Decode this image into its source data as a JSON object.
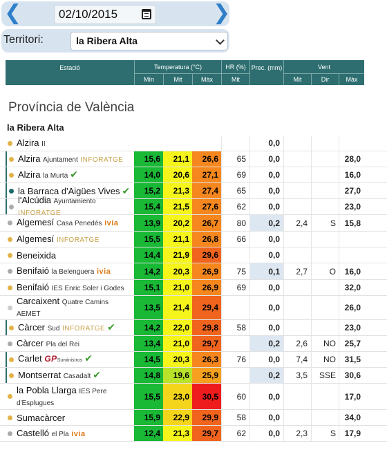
{
  "date_nav": {
    "prev_icon": "chevron-left-icon",
    "next_icon": "chevron-right-icon",
    "prev_glyph": "❮",
    "next_glyph": "❯",
    "date_value": "02/10/2015",
    "calendar_icon": "calendar-icon"
  },
  "territory": {
    "label": "Territori:",
    "selected": "la Ribera Alta"
  },
  "table_header": {
    "station": "Estació",
    "temperature": "Temperatura (°C)",
    "humidity": "HR (%)",
    "precip": "Prec. (mm)",
    "wind": "Vent",
    "min": "Mín",
    "mit": "Mit",
    "max": "Màx",
    "hr_mit": "Mit",
    "wind_mit": "Mit",
    "wind_dir": "Dir",
    "wind_max": "Màx"
  },
  "province": "Província de València",
  "comarca": "la Ribera Alta",
  "colors": {
    "header_bg": "#2e6e70",
    "bar_bg": "#d7e4f0",
    "check": "#3a9b2c",
    "brand_inforatge": "#c8a24a",
    "brand_ivia_orange": "#e07a1a"
  },
  "stations": [
    {
      "name": "Alzira",
      "sub": "II",
      "brand": "",
      "check": false,
      "dot": "#e2b24a",
      "bar": false,
      "h": 23,
      "min": "",
      "mit": "",
      "max": "",
      "hr": "",
      "prec": "0,0",
      "wmit": "",
      "wdir": "",
      "wmax": "",
      "cmin": "#ffffff",
      "cmit": "#ffffff",
      "cmax": "#ffffff",
      "cprec": "#ffffff"
    },
    {
      "name": "Alzira",
      "sub": "Ajuntament",
      "brand": "INFORATGE",
      "check": false,
      "dot": "#e2b24a",
      "bar": true,
      "h": 23,
      "min": "15,6",
      "mit": "21,1",
      "max": "26,6",
      "hr": "65",
      "prec": "0,0",
      "wmit": "",
      "wdir": "",
      "wmax": "28,0",
      "cmin": "#19b835",
      "cmit": "#f5f51c",
      "cmax": "#f5871e",
      "cprec": "#ffffff"
    },
    {
      "name": "Alzira",
      "sub": "la Murta",
      "brand": "",
      "check": true,
      "dot": "#e2b24a",
      "bar": true,
      "h": 23,
      "min": "14,0",
      "mit": "20,6",
      "max": "27,1",
      "hr": "69",
      "prec": "0,0",
      "wmit": "",
      "wdir": "",
      "wmax": "16,0",
      "cmin": "#19b835",
      "cmit": "#f5f51c",
      "cmax": "#f5871e",
      "cprec": "#ffffff"
    },
    {
      "name": "la Barraca d'Aigües Vives",
      "sub": "",
      "brand": "",
      "check": true,
      "dot": "#1e6a6b",
      "bar": true,
      "h": 23,
      "min": "15,2",
      "mit": "21,3",
      "max": "27,4",
      "hr": "65",
      "prec": "0,0",
      "wmit": "",
      "wdir": "",
      "wmax": "27,0",
      "cmin": "#19b835",
      "cmit": "#f5f51c",
      "cmax": "#f5871e",
      "cprec": "#ffffff"
    },
    {
      "name": "l'Alcúdia",
      "sub": "Ayuntamiento",
      "brand": "INFORATGE",
      "check": false,
      "dot": "#aaaaaa",
      "bar": true,
      "h": 23,
      "min": "15,4",
      "mit": "21,5",
      "max": "27,6",
      "hr": "62",
      "prec": "0,0",
      "wmit": "",
      "wdir": "",
      "wmax": "23,0",
      "cmin": "#19b835",
      "cmit": "#f5f51c",
      "cmax": "#f5871e",
      "cprec": "#ffffff"
    },
    {
      "name": "Algemesí",
      "sub": "Casa Penedés",
      "brand": "ivia",
      "check": false,
      "dot": "#aaaaaa",
      "bar": false,
      "h": 24,
      "min": "13,9",
      "mit": "20,2",
      "max": "26,7",
      "hr": "80",
      "prec": "0,2",
      "wmit": "2,4",
      "wdir": "S",
      "wmax": "15,8",
      "cmin": "#19b835",
      "cmit": "#f5f51c",
      "cmax": "#f5871e",
      "cprec": "#dde7f2"
    },
    {
      "name": "Algemesí",
      "sub": "",
      "brand": "INFORATGE",
      "check": false,
      "dot": "#e2b24a",
      "bar": false,
      "h": 23,
      "min": "15,5",
      "mit": "21,1",
      "max": "26,8",
      "hr": "66",
      "prec": "0,0",
      "wmit": "",
      "wdir": "",
      "wmax": "",
      "cmin": "#19b835",
      "cmit": "#f5f51c",
      "cmax": "#f5871e",
      "cprec": "#ffffff"
    },
    {
      "name": "Beneixida",
      "sub": "",
      "brand": "",
      "check": false,
      "dot": "#e2b24a",
      "bar": false,
      "h": 23,
      "min": "14,4",
      "mit": "21,9",
      "max": "29,6",
      "hr": "",
      "prec": "0,0",
      "wmit": "",
      "wdir": "",
      "wmax": "",
      "cmin": "#19b835",
      "cmit": "#f5f51c",
      "cmax": "#f0641e",
      "cprec": "#ffffff"
    },
    {
      "name": "Benifaió",
      "sub": "la Belenguera",
      "brand": "ivia",
      "check": false,
      "dot": "#aaaaaa",
      "bar": false,
      "h": 24,
      "min": "14,2",
      "mit": "20,3",
      "max": "26,9",
      "hr": "75",
      "prec": "0,1",
      "wmit": "2,7",
      "wdir": "O",
      "wmax": "16,0",
      "cmin": "#19b835",
      "cmit": "#f5f51c",
      "cmax": "#f5871e",
      "cprec": "#dde7f2"
    },
    {
      "name": "Benifaió",
      "sub": "IES Enric Soler i Godes",
      "brand": "",
      "check": false,
      "dot": "#e2b24a",
      "bar": false,
      "h": 23,
      "min": "15,1",
      "mit": "21,0",
      "max": "26,9",
      "hr": "69",
      "prec": "0,0",
      "wmit": "",
      "wdir": "",
      "wmax": "32,0",
      "cmin": "#19b835",
      "cmit": "#f5f51c",
      "cmax": "#f5871e",
      "cprec": "#ffffff"
    },
    {
      "name": "Carcaixent",
      "sub": "Quatre Camins",
      "sub2": "AEMET",
      "brand": "",
      "check": false,
      "dot": "#cccccc",
      "bar": false,
      "h": 35,
      "min": "13,5",
      "mit": "21,4",
      "max": "29,4",
      "hr": "",
      "prec": "0,0",
      "wmit": "",
      "wdir": "",
      "wmax": "26,0",
      "cmin": "#19b835",
      "cmit": "#f5f51c",
      "cmax": "#f0641e",
      "cprec": "#ffffff"
    },
    {
      "name": "Càrcer",
      "sub": "Sud",
      "brand": "INFORATGE",
      "check": true,
      "dot": "#e2b24a",
      "bar": true,
      "h": 23,
      "min": "14,2",
      "mit": "22,0",
      "max": "29,8",
      "hr": "58",
      "prec": "0,0",
      "wmit": "",
      "wdir": "",
      "wmax": "23,0",
      "cmin": "#19b835",
      "cmit": "#f5f51c",
      "cmax": "#f0641e",
      "cprec": "#ffffff"
    },
    {
      "name": "Càrcer",
      "sub": "Pla del Rei",
      "brand": "",
      "check": false,
      "dot": "#aaaaaa",
      "bar": false,
      "h": 23,
      "min": "13,4",
      "mit": "21,0",
      "max": "29,7",
      "hr": "",
      "prec": "0,2",
      "wmit": "2,6",
      "wdir": "NO",
      "wmax": "25,7",
      "cmin": "#19b835",
      "cmit": "#f5f51c",
      "cmax": "#f0641e",
      "cprec": "#dde7f2"
    },
    {
      "name": "Carlet",
      "sub": "",
      "brand": "GP",
      "brand2": "Suministros",
      "check": true,
      "dot": "#e2b24a",
      "bar": true,
      "h": 23,
      "min": "14,5",
      "mit": "20,3",
      "max": "26,3",
      "hr": "76",
      "prec": "0,0",
      "wmit": "7,4",
      "wdir": "NO",
      "wmax": "31,5",
      "cmin": "#19b835",
      "cmit": "#f5f51c",
      "cmax": "#f5871e",
      "cprec": "#ffffff"
    },
    {
      "name": "Montserrat",
      "sub": "Casadalt",
      "brand": "",
      "check": true,
      "dot": "#e2b24a",
      "bar": true,
      "h": 23,
      "min": "14,8",
      "mit": "19,6",
      "max": "25,9",
      "hr": "",
      "prec": "0,2",
      "wmit": "3,5",
      "wdir": "SSE",
      "wmax": "30,6",
      "cmin": "#19b835",
      "cmit": "#b9e32a",
      "cmax": "#f5a01e",
      "cprec": "#dde7f2"
    },
    {
      "name": "la Pobla Llarga",
      "sub": "IES Pere",
      "sub2": "d'Esplugues",
      "brand": "",
      "check": false,
      "dot": "#e2b24a",
      "bar": false,
      "h": 38,
      "min": "15,5",
      "mit": "23,0",
      "max": "30,5",
      "hr": "60",
      "prec": "0,0",
      "wmit": "",
      "wdir": "",
      "wmax": "17,0",
      "cmin": "#19b835",
      "cmit": "#f5d51c",
      "cmax": "#ee1c1c",
      "cprec": "#ffffff"
    },
    {
      "name": "Sumacàrcer",
      "sub": "",
      "brand": "",
      "check": false,
      "dot": "#e2b24a",
      "bar": false,
      "h": 23,
      "min": "15,9",
      "mit": "22,9",
      "max": "29,9",
      "hr": "58",
      "prec": "0,0",
      "wmit": "",
      "wdir": "",
      "wmax": "34,0",
      "cmin": "#19b835",
      "cmit": "#f5d51c",
      "cmax": "#f0641e",
      "cprec": "#ffffff"
    },
    {
      "name": "Castelló",
      "sub": "el Pla",
      "brand": "ivia",
      "check": false,
      "dot": "#aaaaaa",
      "bar": false,
      "h": 23,
      "min": "12,4",
      "mit": "21,3",
      "max": "29,7",
      "hr": "62",
      "prec": "0,0",
      "wmit": "2,3",
      "wdir": "S",
      "wmax": "17,9",
      "cmin": "#19b835",
      "cmit": "#f5f51c",
      "cmax": "#f0641e",
      "cprec": "#ffffff"
    }
  ]
}
